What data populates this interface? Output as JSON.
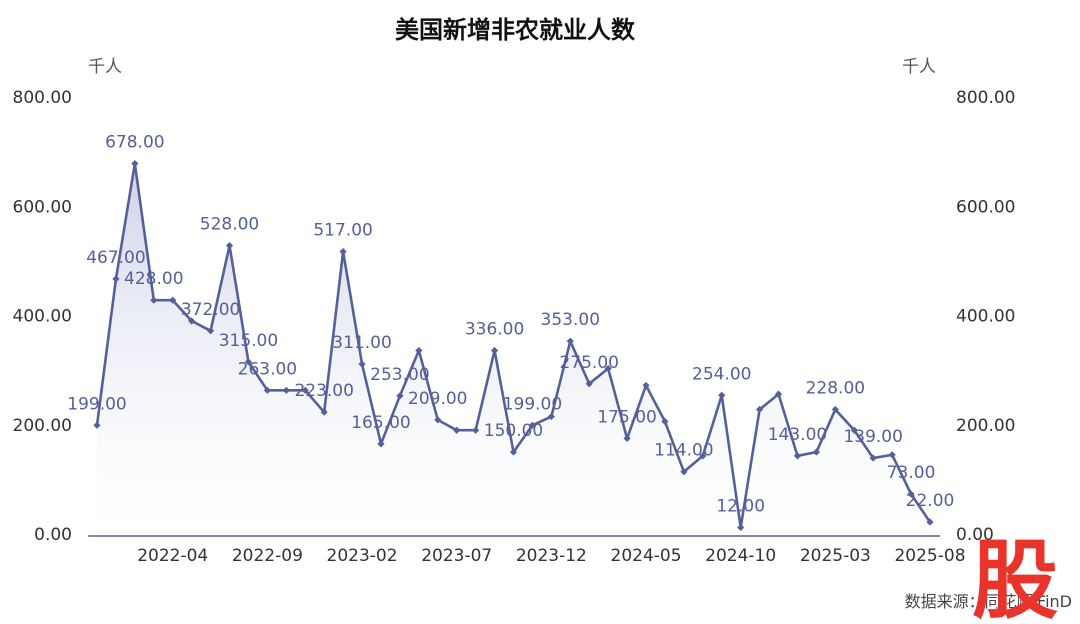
{
  "header": {
    "title": "美国新增非农就业人数"
  },
  "units": {
    "left": "千人",
    "right": "千人"
  },
  "footer": {
    "source": "数据来源：同花顺iFinD"
  },
  "logo": {
    "text": "股"
  },
  "colors": {
    "line": "#55609a",
    "fill_top": "#c8cce6",
    "axis": "#55609a",
    "logo": "#e8342b"
  },
  "chart_data": {
    "type": "area",
    "title": "美国新增非农就业人数",
    "ylabel_left": "千人",
    "ylabel_right": "千人",
    "ylim": [
      0,
      800
    ],
    "yticks": [
      "0.00",
      "200.00",
      "400.00",
      "600.00",
      "800.00"
    ],
    "xticks": [
      "2022-04",
      "2022-09",
      "2023-02",
      "2023-07",
      "2023-12",
      "2024-05",
      "2024-10",
      "2025-03",
      "2025-08"
    ],
    "x": [
      "2021-12",
      "2022-01",
      "2022-02",
      "2022-03",
      "2022-04",
      "2022-05",
      "2022-06",
      "2022-07",
      "2022-08",
      "2022-09",
      "2022-10",
      "2022-11",
      "2022-12",
      "2023-01",
      "2023-02",
      "2023-03",
      "2023-04",
      "2023-05",
      "2023-06",
      "2023-07",
      "2023-08",
      "2023-09",
      "2023-10",
      "2023-11",
      "2023-12",
      "2024-01",
      "2024-02",
      "2024-03",
      "2024-04",
      "2024-05",
      "2024-06",
      "2024-07",
      "2024-08",
      "2024-09",
      "2024-10",
      "2024-11",
      "2024-12",
      "2025-01",
      "2025-02",
      "2025-03",
      "2025-04",
      "2025-05",
      "2025-06",
      "2025-07",
      "2025-08"
    ],
    "values": [
      199,
      467,
      678,
      428,
      428,
      390,
      372,
      528,
      315,
      263,
      263,
      263,
      223,
      517,
      311,
      165,
      253,
      336,
      209,
      190,
      190,
      336,
      150,
      199,
      215,
      353,
      275,
      303,
      175,
      272,
      206,
      114,
      143,
      254,
      12,
      228,
      256,
      143,
      150,
      228,
      190,
      139,
      145,
      73,
      22
    ],
    "labeled": [
      {
        "i": 0,
        "text": "199.00"
      },
      {
        "i": 1,
        "text": "467.00"
      },
      {
        "i": 2,
        "text": "678.00"
      },
      {
        "i": 3,
        "text": "428.00"
      },
      {
        "i": 6,
        "text": "372.00"
      },
      {
        "i": 7,
        "text": "528.00"
      },
      {
        "i": 8,
        "text": "315.00"
      },
      {
        "i": 9,
        "text": "263.00"
      },
      {
        "i": 12,
        "text": "223.00"
      },
      {
        "i": 13,
        "text": "517.00"
      },
      {
        "i": 14,
        "text": "311.00"
      },
      {
        "i": 15,
        "text": "165.00"
      },
      {
        "i": 16,
        "text": "253.00"
      },
      {
        "i": 18,
        "text": "209.00"
      },
      {
        "i": 21,
        "text": "336.00"
      },
      {
        "i": 22,
        "text": "150.00"
      },
      {
        "i": 23,
        "text": "199.00"
      },
      {
        "i": 25,
        "text": "353.00"
      },
      {
        "i": 26,
        "text": "275.00"
      },
      {
        "i": 28,
        "text": "175.00"
      },
      {
        "i": 31,
        "text": "114.00"
      },
      {
        "i": 33,
        "text": "254.00"
      },
      {
        "i": 34,
        "text": "12.00"
      },
      {
        "i": 37,
        "text": "143.00"
      },
      {
        "i": 39,
        "text": "228.00"
      },
      {
        "i": 41,
        "text": "139.00"
      },
      {
        "i": 43,
        "text": "73.00"
      },
      {
        "i": 44,
        "text": "22.00"
      }
    ],
    "legend": "none",
    "grid": false
  }
}
